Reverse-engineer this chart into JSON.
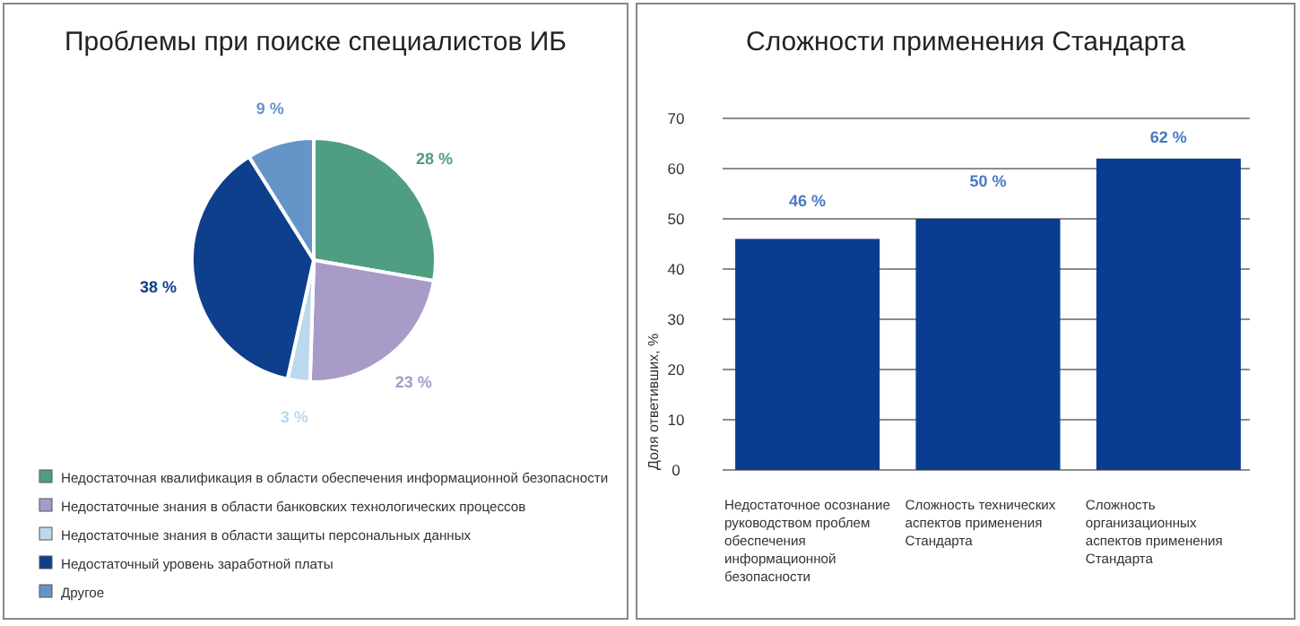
{
  "chart_data": [
    {
      "type": "pie",
      "title": "Проблемы при поиске специалистов ИБ",
      "categories": [
        "Недостаточная квалификация в области обеспечения информационной безопасности",
        "Недостаточные знания в области банковских технологических процессов",
        "Недостаточные знания в области защиты персональных данных",
        "Недостаточный уровень заработной платы",
        "Другое"
      ],
      "values": [
        28,
        23,
        3,
        38,
        9
      ],
      "colors": [
        "#4f9e82",
        "#a89bc8",
        "#bcd8ec",
        "#0d3f8c",
        "#6595c8"
      ],
      "value_labels": [
        "28 %",
        "23 %",
        "3 %",
        "38 %",
        "9 %"
      ],
      "legend": "bottom"
    },
    {
      "type": "bar",
      "title": "Сложности применения Стандарта",
      "ylabel": "Доля ответивших, %",
      "categories": [
        "Недостаточное осознание руководством проблем обеспечения информационной безопасности",
        "Сложность технических аспектов применения Стандарта",
        "Сложность организационных аспектов применения Стандарта"
      ],
      "values": [
        46,
        50,
        62
      ],
      "color": "#0a3d8f",
      "value_labels": [
        "46 %",
        "50 %",
        "62 %"
      ],
      "ylim": [
        0,
        70
      ],
      "yticks": [
        0,
        10,
        20,
        30,
        40,
        50,
        60,
        70
      ],
      "grid": "y"
    }
  ]
}
